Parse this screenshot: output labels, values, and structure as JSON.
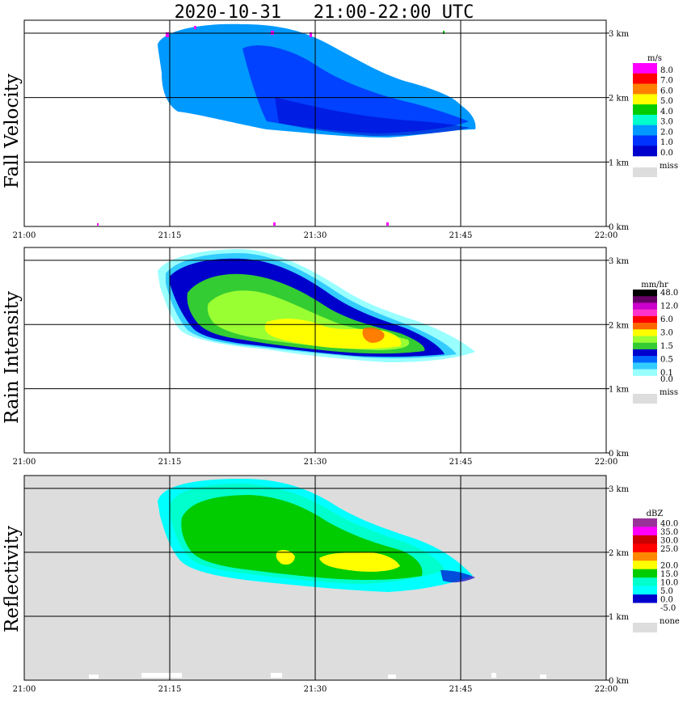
{
  "title": "2020-10-31   21:00-22:00 UTC",
  "x_tick_labels": [
    "21:00",
    "21:15",
    "21:30",
    "21:45",
    "22:00"
  ],
  "y_tick_labels": [
    "0 km",
    "1 km",
    "2 km",
    "3 km"
  ],
  "chart_data": [
    {
      "type": "heatmap",
      "ylabel": "Fall Velocity",
      "unit": "m/s",
      "background": "#ffffff",
      "legend": [
        {
          "label": "8.0",
          "color": "#ff00ff"
        },
        {
          "label": "7.0",
          "color": "#ff0000"
        },
        {
          "label": "6.0",
          "color": "#ff7f00"
        },
        {
          "label": "5.0",
          "color": "#ffff00"
        },
        {
          "label": "4.0",
          "color": "#00cc00"
        },
        {
          "label": "3.0",
          "color": "#00ffcc"
        },
        {
          "label": "2.0",
          "color": "#0099ff"
        },
        {
          "label": "1.0",
          "color": "#0033ff"
        },
        {
          "label": "0.0",
          "color": "#0000cc"
        }
      ],
      "missing_label": "miss",
      "missing_color": "#dddddd",
      "xlim": [
        "21:00",
        "22:00"
      ],
      "ylim_km": [
        0,
        3.2
      ]
    },
    {
      "type": "heatmap",
      "ylabel": "Rain Intensity",
      "unit": "mm/hr",
      "background": "#ffffff",
      "legend": [
        {
          "label": "48.0",
          "color": "#000000"
        },
        {
          "label": "",
          "color": "#660066"
        },
        {
          "label": "12.0",
          "color": "#cc00cc"
        },
        {
          "label": "",
          "color": "#ff33cc"
        },
        {
          "label": "6.0",
          "color": "#ff0000"
        },
        {
          "label": "",
          "color": "#ff6600"
        },
        {
          "label": "3.0",
          "color": "#ffff00"
        },
        {
          "label": "",
          "color": "#99ff33"
        },
        {
          "label": "1.5",
          "color": "#33cc33"
        },
        {
          "label": "",
          "color": "#0000cc"
        },
        {
          "label": "0.5",
          "color": "#0066ff"
        },
        {
          "label": "",
          "color": "#33ccff"
        },
        {
          "label": "0.1",
          "color": "#99ffff"
        },
        {
          "label": "0.0",
          "color": "#ffffff"
        }
      ],
      "missing_label": "miss",
      "missing_color": "#dddddd",
      "xlim": [
        "21:00",
        "22:00"
      ],
      "ylim_km": [
        0,
        3.2
      ]
    },
    {
      "type": "heatmap",
      "ylabel": "Reflectivity",
      "unit": "dBZ",
      "background": "#dddddd",
      "legend": [
        {
          "label": "40.0",
          "color": "#993399"
        },
        {
          "label": "35.0",
          "color": "#ff00ff"
        },
        {
          "label": "30.0",
          "color": "#cc0000"
        },
        {
          "label": "25.0",
          "color": "#ff0000"
        },
        {
          "label": "",
          "color": "#ff8800"
        },
        {
          "label": "20.0",
          "color": "#ffff00"
        },
        {
          "label": "15.0",
          "color": "#00cc00"
        },
        {
          "label": "10.0",
          "color": "#00ffcc"
        },
        {
          "label": "5.0",
          "color": "#00ffff"
        },
        {
          "label": "0.0",
          "color": "#0000cc"
        },
        {
          "label": "-5.0",
          "color": "#ffffff"
        }
      ],
      "missing_label": "none",
      "missing_color": "#dddddd",
      "xlim": [
        "21:00",
        "22:00"
      ],
      "ylim_km": [
        0,
        3.2
      ]
    }
  ]
}
